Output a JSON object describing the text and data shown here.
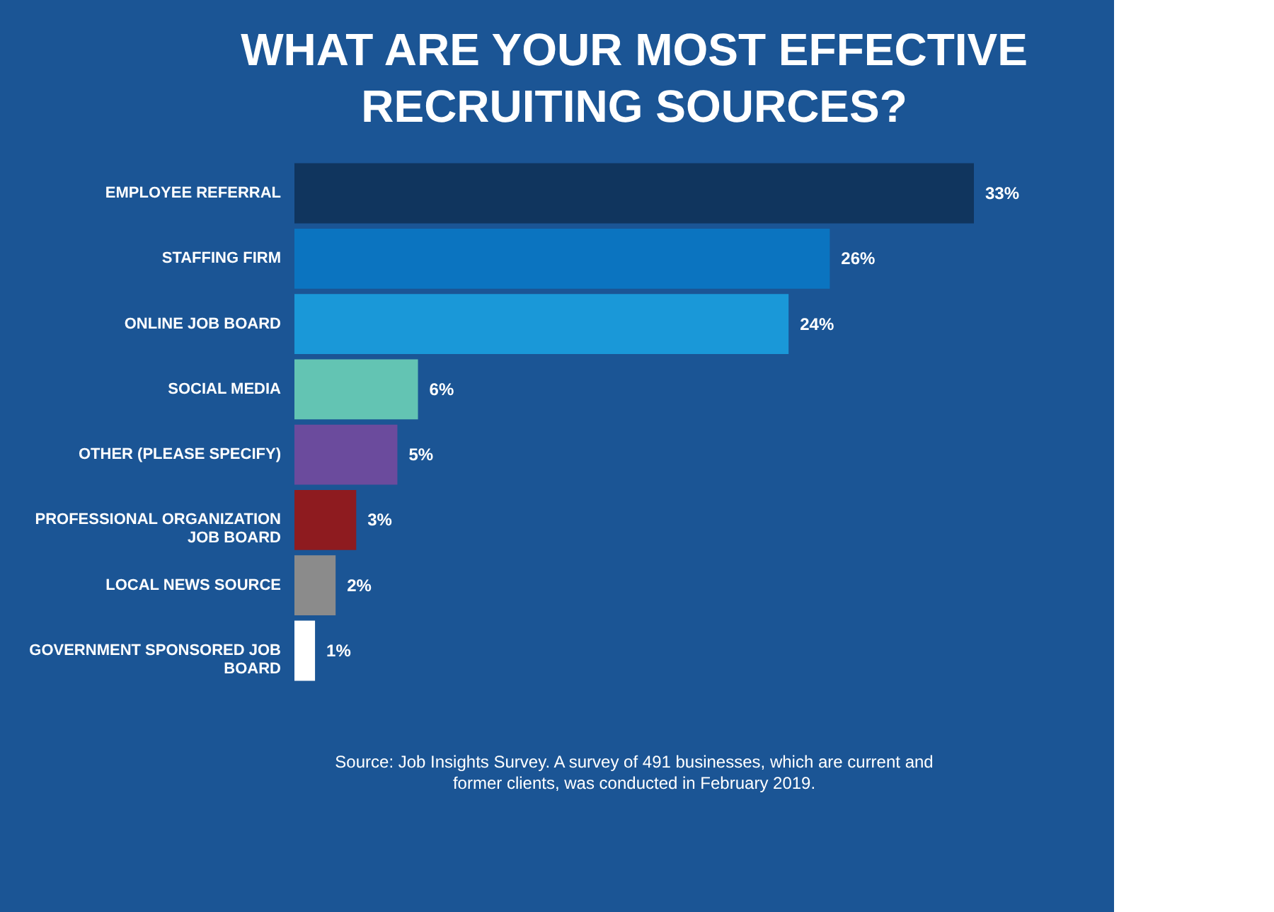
{
  "chart_data": {
    "type": "bar",
    "orientation": "horizontal",
    "title": "WHAT ARE YOUR MOST EFFECTIVE RECRUITING SOURCES?",
    "categories": [
      "EMPLOYEE REFERRAL",
      "STAFFING FIRM",
      "ONLINE JOB BOARD",
      "SOCIAL MEDIA",
      "OTHER (PLEASE SPECIFY)",
      "PROFESSIONAL ORGANIZATION JOB BOARD",
      "LOCAL NEWS SOURCE",
      "GOVERNMENT SPONSORED JOB BOARD"
    ],
    "values": [
      33,
      26,
      24,
      6,
      5,
      3,
      2,
      1
    ],
    "colors": [
      "#10355e",
      "#0b74c0",
      "#1a98d8",
      "#63c4b3",
      "#6b4b9d",
      "#8e1b1f",
      "#8b8b8b",
      "#ffffff"
    ],
    "value_labels": [
      "33%",
      "26%",
      "24%",
      "6%",
      "5%",
      "3%",
      "2%",
      "1%"
    ],
    "annotations": [
      "Source: Job Insights Survey. A survey of 491 businesses, which are current and former clients, was conducted in February 2019."
    ],
    "grid": false
  }
}
